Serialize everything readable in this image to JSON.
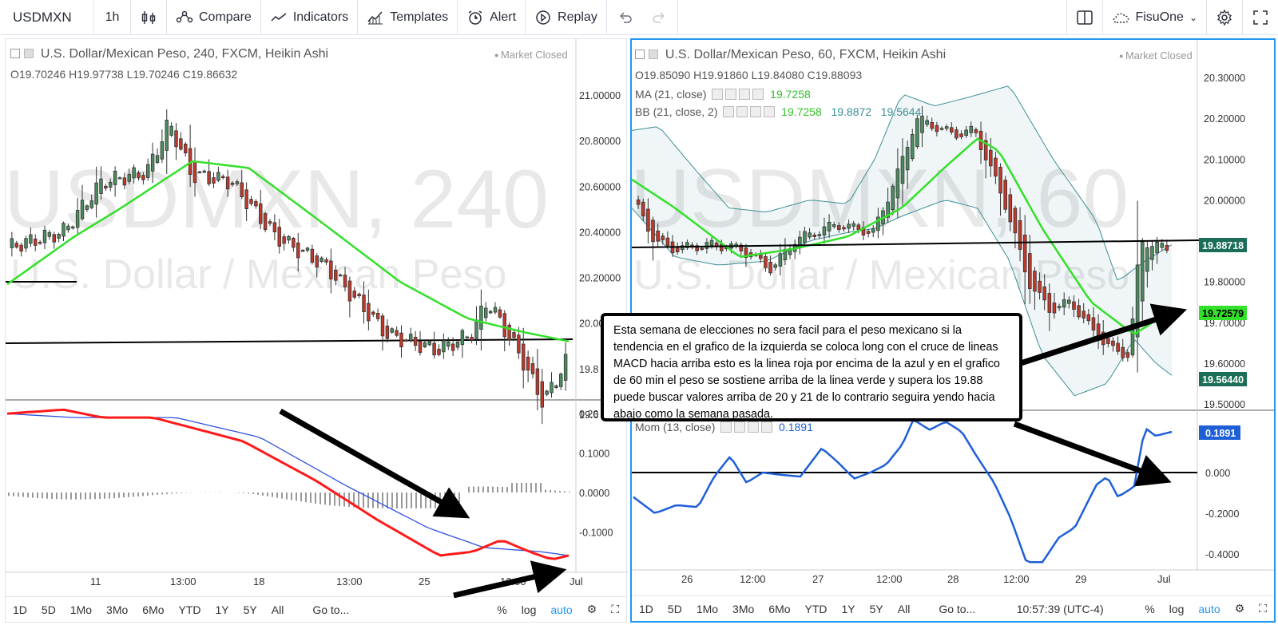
{
  "toolbar": {
    "symbol": "USDMXN",
    "interval": "1h",
    "compare": "Compare",
    "indicators": "Indicators",
    "templates": "Templates",
    "alert": "Alert",
    "replay": "Replay",
    "layout_name": "FisuOne"
  },
  "left": {
    "title": "U.S. Dollar/Mexican Peso, 240, FXCM, Heikin Ashi",
    "ohlc": "O19.70246   H19.97738   L19.70246   C19.86632",
    "market_status": "Market Closed",
    "watermark_big": "USDMXN, 240",
    "watermark_small": "U.S. Dollar / Mexican Peso",
    "price_ticks": [
      "21.00000",
      "20.80000",
      "20.60000",
      "20.40000",
      "20.20000",
      "20.00000",
      "19.8",
      "19.6"
    ],
    "macd_ticks": [
      "0.20",
      "0.1000",
      "0.0000",
      "-0.1000"
    ],
    "time_ticks": [
      "11",
      "13:00",
      "18",
      "13:00",
      "25",
      "13:00",
      "Jul"
    ],
    "bottom": [
      "1D",
      "5D",
      "1Mo",
      "3Mo",
      "6Mo",
      "YTD",
      "1Y",
      "5Y",
      "All",
      "Go to...",
      "%",
      "log",
      "auto"
    ]
  },
  "right": {
    "title": "U.S. Dollar/Mexican Peso, 60, FXCM, Heikin Ashi",
    "ohlc": "O19.85090   H19.91860   L19.84080   C19.88093",
    "market_status": "Market Closed",
    "ma_label": "MA (21, close)",
    "ma_value": "19.7258",
    "bb_label": "BB (21, close, 2)",
    "bb_values": [
      "19.7258",
      "19.8872",
      "19.5644"
    ],
    "mom_label": "Mom (13, close)",
    "mom_value": "0.1891",
    "watermark_big": "USDMXN, 60",
    "watermark_small": "U.S. Dollar / Mexican Peso",
    "price_ticks": [
      "20.30000",
      "20.20000",
      "20.10000",
      "20.00000",
      "19.80000",
      "19.70000",
      "19.60000",
      "19.50000"
    ],
    "price_tags": {
      "close": "19.88718",
      "ma": "19.72579",
      "bb_low": "19.56440",
      "mom": "0.1891"
    },
    "mom_ticks": [
      "0.000",
      "-0.2000",
      "-0.4000"
    ],
    "time_ticks": [
      "26",
      "12:00",
      "27",
      "12:00",
      "28",
      "12:00",
      "29",
      "Jul"
    ],
    "bottom": [
      "1D",
      "5D",
      "1Mo",
      "3Mo",
      "6Mo",
      "YTD",
      "1Y",
      "5Y",
      "All",
      "Go to...",
      "10:57:39 (UTC-4)",
      "%",
      "log",
      "auto"
    ]
  },
  "annotation": "Esta semana de elecciones no sera facil para el peso mexicano si la tendencia en el grafico de la izquierda se coloca long con el cruce de lineas MACD hacia arriba esto es la linea roja por encima de la azul y en el grafico de 60 min el peso se sostiene arriba de la linea verde y supera los 19.88 puede buscar valores arriba de 20 y 21 de lo contrario seguira yendo hacia abajo como la semana pasada.",
  "colors": {
    "up": "#4c8c5e",
    "down": "#c0392b",
    "ma": "#33e02a",
    "macd": "#ff1a1a",
    "signal": "#3050e0",
    "mom": "#1f5fd6",
    "bb": "#3b8f95",
    "accent": "#2196f3"
  }
}
